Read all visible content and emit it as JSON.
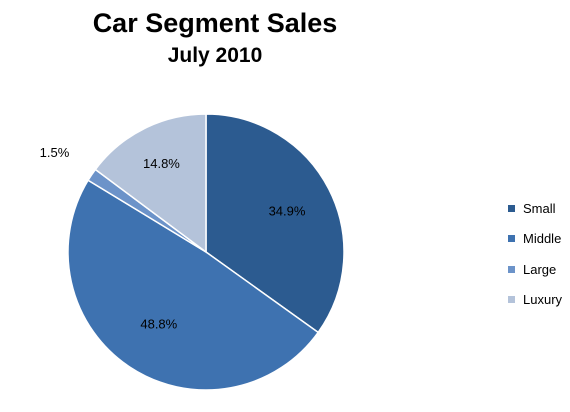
{
  "chart_data": {
    "type": "pie",
    "title": "Car Segment Sales",
    "subtitle": "July 2010",
    "categories": [
      "Small",
      "Middle",
      "Large",
      "Luxury"
    ],
    "values": [
      34.9,
      48.8,
      1.5,
      14.8
    ],
    "labels": [
      "34.9%",
      "48.8%",
      "1.5%",
      "14.8%"
    ],
    "colors": [
      "#2c5b90",
      "#3e72b0",
      "#6c93c9",
      "#b4c3da"
    ],
    "legend": "right",
    "start": "12 o'clock, clockwise"
  }
}
